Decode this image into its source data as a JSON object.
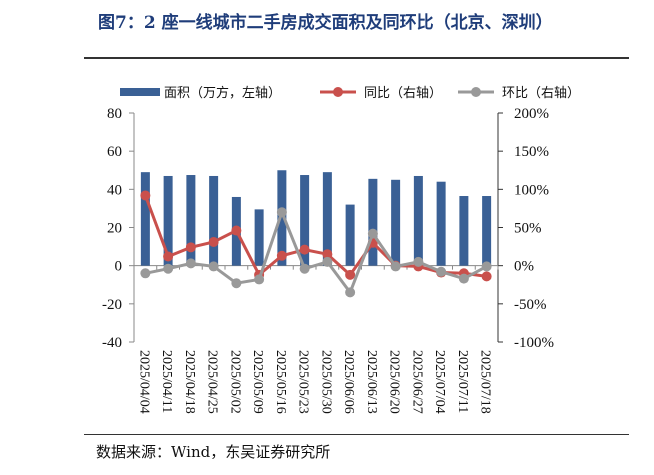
{
  "title": "图7：2 座一线城市二手房成交面积及同环比（北京、深圳）",
  "source": "数据来源：Wind，东吴证券研究所",
  "chart_data": {
    "type": "bar+line",
    "categories": [
      "2025/04/04",
      "2025/04/11",
      "2025/04/18",
      "2025/04/25",
      "2025/05/02",
      "2025/05/09",
      "2025/05/16",
      "2025/05/23",
      "2025/05/30",
      "2025/06/06",
      "2025/06/13",
      "2025/06/20",
      "2025/06/27",
      "2025/07/04",
      "2025/07/11",
      "2025/07/18"
    ],
    "series": [
      {
        "name": "面积（万方，左轴）",
        "type": "bar",
        "axis": "left",
        "color": "#3a6095",
        "values": [
          49,
          47,
          47.5,
          47,
          36,
          29.5,
          50,
          47.5,
          49,
          32,
          45.5,
          45,
          47,
          44,
          36.5,
          36.5
        ]
      },
      {
        "name": "同比（右轴）",
        "type": "line",
        "axis": "right",
        "color": "#c9504c",
        "values": [
          92,
          12,
          24,
          31,
          46,
          -12,
          13,
          21,
          15,
          -12,
          30,
          0,
          -1,
          -9,
          -10,
          -14
        ]
      },
      {
        "name": "环比（右轴）",
        "type": "line",
        "axis": "right",
        "color": "#999999",
        "values": [
          -10,
          -4,
          3,
          -1,
          -23,
          -18,
          70,
          -4,
          5,
          -35,
          42,
          -1,
          5,
          -8,
          -17,
          -1
        ]
      }
    ],
    "left_axis": {
      "ylim": [
        -40,
        80
      ],
      "ticks": [
        "80",
        "60",
        "40",
        "20",
        "0",
        "-20",
        "-40"
      ]
    },
    "right_axis": {
      "ylim": [
        -100,
        200
      ],
      "ticks": [
        "200%",
        "150%",
        "100%",
        "50%",
        "0%",
        "-50%",
        "-100%"
      ]
    },
    "legend": "top",
    "grid": false
  }
}
